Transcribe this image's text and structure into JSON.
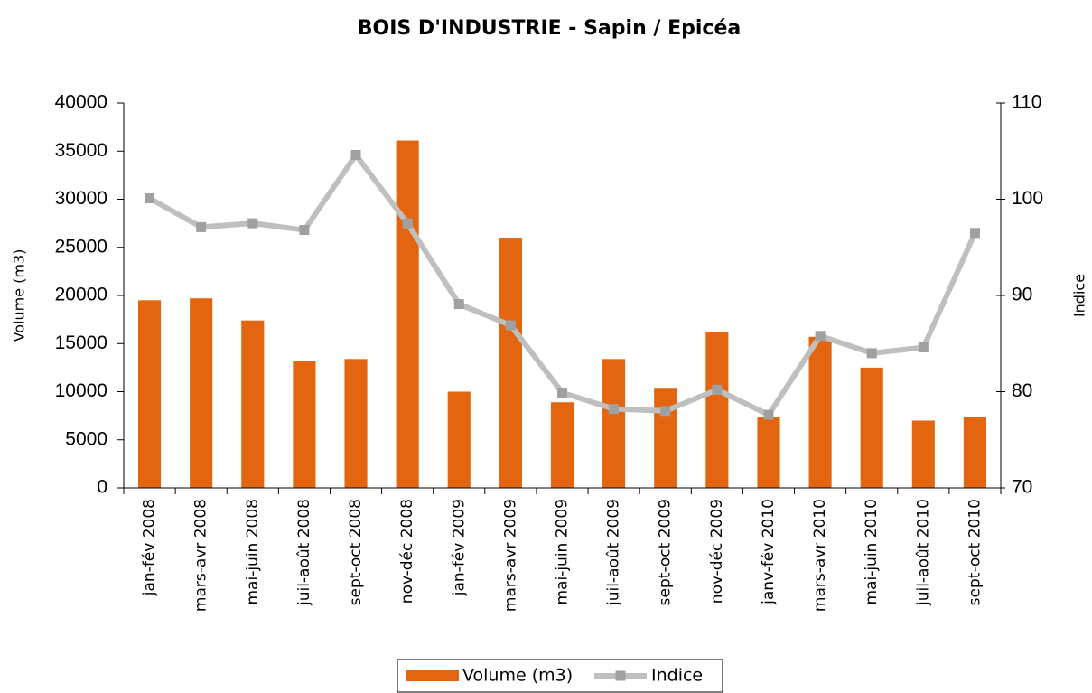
{
  "chart_data": {
    "type": "bar_line",
    "title": "BOIS D'INDUSTRIE - Sapin / Epicéa",
    "ylabel": "Volume (m3)",
    "y2label": "Indice",
    "categories": [
      "jan-fév 2008",
      "mars-avr 2008",
      "mai-juin 2008",
      "juil-août 2008",
      "sept-oct 2008",
      "nov-déc 2008",
      "jan-fév 2009",
      "mars-avr 2009",
      "mai-juin 2009",
      "juil-août 2009",
      "sept-oct 2009",
      "nov-déc 2009",
      "janv-fév 2010",
      "mars-avr 2010",
      "mai-juin 2010",
      "juil-août 2010",
      "sept-oct 2010"
    ],
    "series": [
      {
        "name": "Volume (m3)",
        "color": "#e46510",
        "type": "bar",
        "values": [
          19500,
          19700,
          17400,
          13200,
          13400,
          36100,
          10000,
          26000,
          8900,
          13400,
          10400,
          16200,
          7400,
          15700,
          12500,
          7000,
          7400
        ]
      },
      {
        "name": "Indice",
        "color": "#bfbfbf",
        "marker_color": "#a0a0a0",
        "type": "line",
        "axis": "y2",
        "values": [
          100.1,
          97.1,
          97.5,
          96.8,
          104.6,
          97.5,
          89.1,
          86.9,
          79.9,
          78.2,
          78.0,
          80.2,
          77.6,
          85.8,
          84.0,
          84.6,
          96.5
        ]
      }
    ],
    "ylim": [
      0,
      40000
    ],
    "yticks": [
      0,
      5000,
      10000,
      15000,
      20000,
      25000,
      30000,
      35000,
      40000
    ],
    "y2lim": [
      70,
      110
    ],
    "y2ticks": [
      70,
      80,
      90,
      100,
      110
    ],
    "grid": false,
    "legend": "bottom"
  }
}
